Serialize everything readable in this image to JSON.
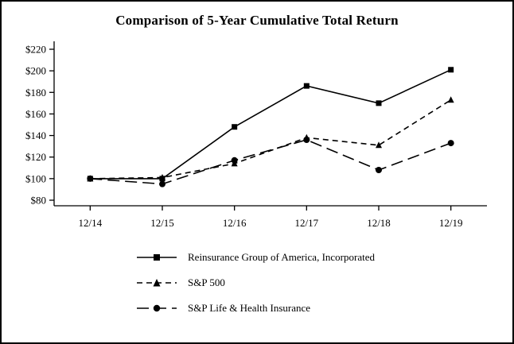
{
  "title": "Comparison of 5-Year Cumulative Total Return",
  "chart_data": {
    "type": "line",
    "title": "Comparison of 5-Year Cumulative Total Return",
    "categories": [
      "12/14",
      "12/15",
      "12/16",
      "12/17",
      "12/18",
      "12/19"
    ],
    "series": [
      {
        "name": "Reinsurance Group of America, Incorporated",
        "values": [
          100,
          100,
          148,
          186,
          170,
          201
        ],
        "line": "solid",
        "marker": "square"
      },
      {
        "name": "S&P 500",
        "values": [
          100,
          101,
          114,
          138,
          131,
          173
        ],
        "line": "dashed",
        "marker": "triangle"
      },
      {
        "name": "S&P Life & Health Insurance",
        "values": [
          100,
          95,
          117,
          136,
          108,
          133
        ],
        "line": "long-dash",
        "marker": "circle"
      }
    ],
    "xlabel": "",
    "ylabel": "",
    "ylim": [
      80,
      220
    ],
    "ytick_step": 20,
    "ytick_labels": [
      "$80",
      "$100",
      "$120",
      "$140",
      "$160",
      "$180",
      "$200",
      "$220"
    ],
    "grid": false,
    "legend_position": "bottom",
    "colors": {
      "line": "#000000",
      "text": "#000000",
      "background": "#ffffff",
      "border": "#000000"
    }
  }
}
